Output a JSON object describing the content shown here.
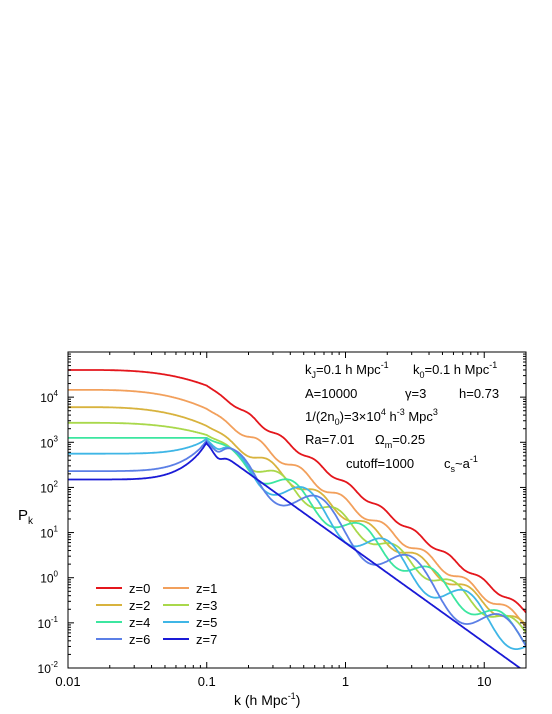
{
  "chart_data": {
    "type": "line",
    "xlabel": "k (h Mpc",
    "xlabel_sup": "-1",
    "xlabel_tail": ")",
    "ylabel": "P",
    "ylabel_sub": "k",
    "xscale": "log",
    "yscale": "log",
    "xlim": [
      0.01,
      20
    ],
    "ylim": [
      0.01,
      100000
    ],
    "x_ticks": [
      {
        "v": 0.01,
        "label": "0.01"
      },
      {
        "v": 0.1,
        "label": "0.1"
      },
      {
        "v": 1,
        "label": "1"
      },
      {
        "v": 10,
        "label": "10"
      }
    ],
    "y_ticks": [
      {
        "v": 0.01,
        "base": "10",
        "exp": "-2"
      },
      {
        "v": 0.1,
        "base": "10",
        "exp": "-1"
      },
      {
        "v": 1,
        "base": "10",
        "exp": "0"
      },
      {
        "v": 10,
        "base": "10",
        "exp": "1"
      },
      {
        "v": 100,
        "base": "10",
        "exp": "2"
      },
      {
        "v": 1000,
        "base": "10",
        "exp": "3"
      },
      {
        "v": 10000,
        "base": "10",
        "exp": "4"
      }
    ],
    "k_peak": 0.1,
    "series": [
      {
        "name": "z=0",
        "color": "#e4161c",
        "plateau": 40000,
        "peak_level": 18000,
        "tail_at_20": 0.18,
        "osc_amp": 0.05,
        "osc_period": 0.24
      },
      {
        "name": "z=1",
        "color": "#f2a05c",
        "plateau": 14500,
        "peak_level": 5500,
        "tail_at_20": 0.1,
        "osc_amp": 0.09,
        "osc_period": 0.3
      },
      {
        "name": "z=2",
        "color": "#d8b33e",
        "plateau": 6000,
        "peak_level": 2300,
        "tail_at_20": 0.075,
        "osc_amp": 0.12,
        "osc_period": 0.36
      },
      {
        "name": "z=3",
        "color": "#a9d84b",
        "plateau": 2700,
        "peak_level": 1450,
        "tail_at_20": 0.058,
        "osc_amp": 0.16,
        "osc_period": 0.42
      },
      {
        "name": "z=4",
        "color": "#3ce6a0",
        "plateau": 1250,
        "peak_level": 1250,
        "tail_at_20": 0.045,
        "osc_amp": 0.24,
        "osc_period": 0.5
      },
      {
        "name": "z=5",
        "color": "#3fb6e6",
        "plateau": 560,
        "peak_level": 1150,
        "tail_at_20": 0.035,
        "osc_amp": 0.32,
        "osc_period": 0.58
      },
      {
        "name": "z=6",
        "color": "#5b7fe6",
        "plateau": 230,
        "peak_level": 1050,
        "tail_at_20": 0.028,
        "osc_amp": 0.38,
        "osc_period": 0.66
      },
      {
        "name": "z=7",
        "color": "#1a1ad6",
        "plateau": 150,
        "peak_level": 950,
        "tail_at_20": 0.008,
        "osc_amp": 0.0,
        "osc_period": 1.0
      }
    ],
    "annotations": {
      "l1a": "k",
      "l1a_sub": "J",
      "l1b": "=0.1 h Mpc",
      "l1b_sup": "-1",
      "l1c": "k",
      "l1c_sub": "0",
      "l1d": "=0.1 h Mpc",
      "l1d_sup": "-1",
      "l2a": "A=10000",
      "l2b": "γ=3",
      "l2c": "h=0.73",
      "l3a": "1/(2n",
      "l3a_sub": "0",
      "l3b": ")=3×10",
      "l3b_sup": "4",
      "l3c": " h",
      "l3c_sup": "-3",
      "l3d": " Mpc",
      "l3d_sup": "3",
      "l4a": "Ra=7.01",
      "l4b": "Ω",
      "l4b_sub": "m",
      "l4c": "=0.25",
      "l5a": "cutoff=1000",
      "l5b": "c",
      "l5b_sub": "s",
      "l5c": "~a",
      "l5c_sup": "-1"
    }
  }
}
